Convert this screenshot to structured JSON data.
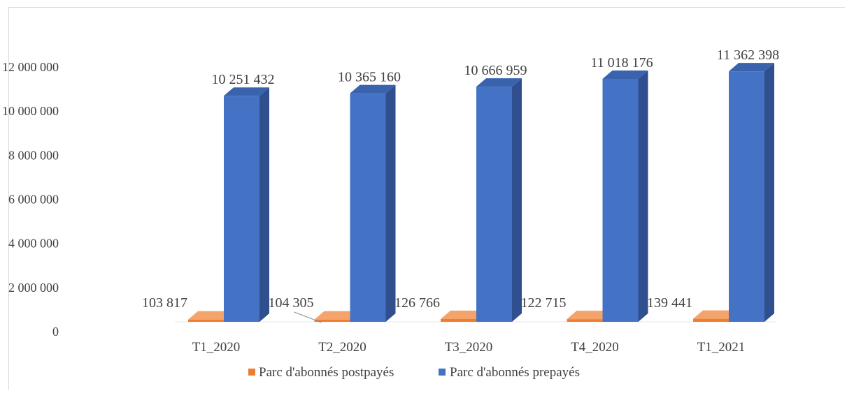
{
  "chart_data": {
    "type": "bar",
    "title": "",
    "xlabel": "",
    "ylabel": "",
    "categories": [
      "T1_2020",
      "T2_2020",
      "T3_2020",
      "T4_2020",
      "T1_2021"
    ],
    "series": [
      {
        "name": "Parc d'abonnés postpayés",
        "values": [
          103817,
          104305,
          126766,
          122715,
          139441
        ],
        "labels": [
          "103 817",
          "104 305",
          "126 766",
          "122 715",
          "139 441"
        ],
        "color": "#ed7d31",
        "color_side": "#ae5a21",
        "color_top": "#f4a46a"
      },
      {
        "name": "Parc d'abonnés prepayés",
        "values": [
          10251432,
          10365160,
          10666959,
          11018176,
          11362398
        ],
        "labels": [
          "10 251 432",
          "10 365 160",
          "10 666 959",
          "11 018 176",
          "11 362 398"
        ],
        "color": "#4472c4",
        "color_side": "#2f4f8f",
        "color_top": "#3a63ad"
      }
    ],
    "ylim": [
      0,
      12000000
    ],
    "yticks": [
      0,
      2000000,
      4000000,
      6000000,
      8000000,
      10000000,
      12000000
    ],
    "ytick_labels": [
      "0",
      "2 000 000",
      "4 000 000",
      "6 000 000",
      "8 000 000",
      "10 000 000",
      "12 000 000"
    ],
    "legend_position": "bottom",
    "grid": false
  }
}
